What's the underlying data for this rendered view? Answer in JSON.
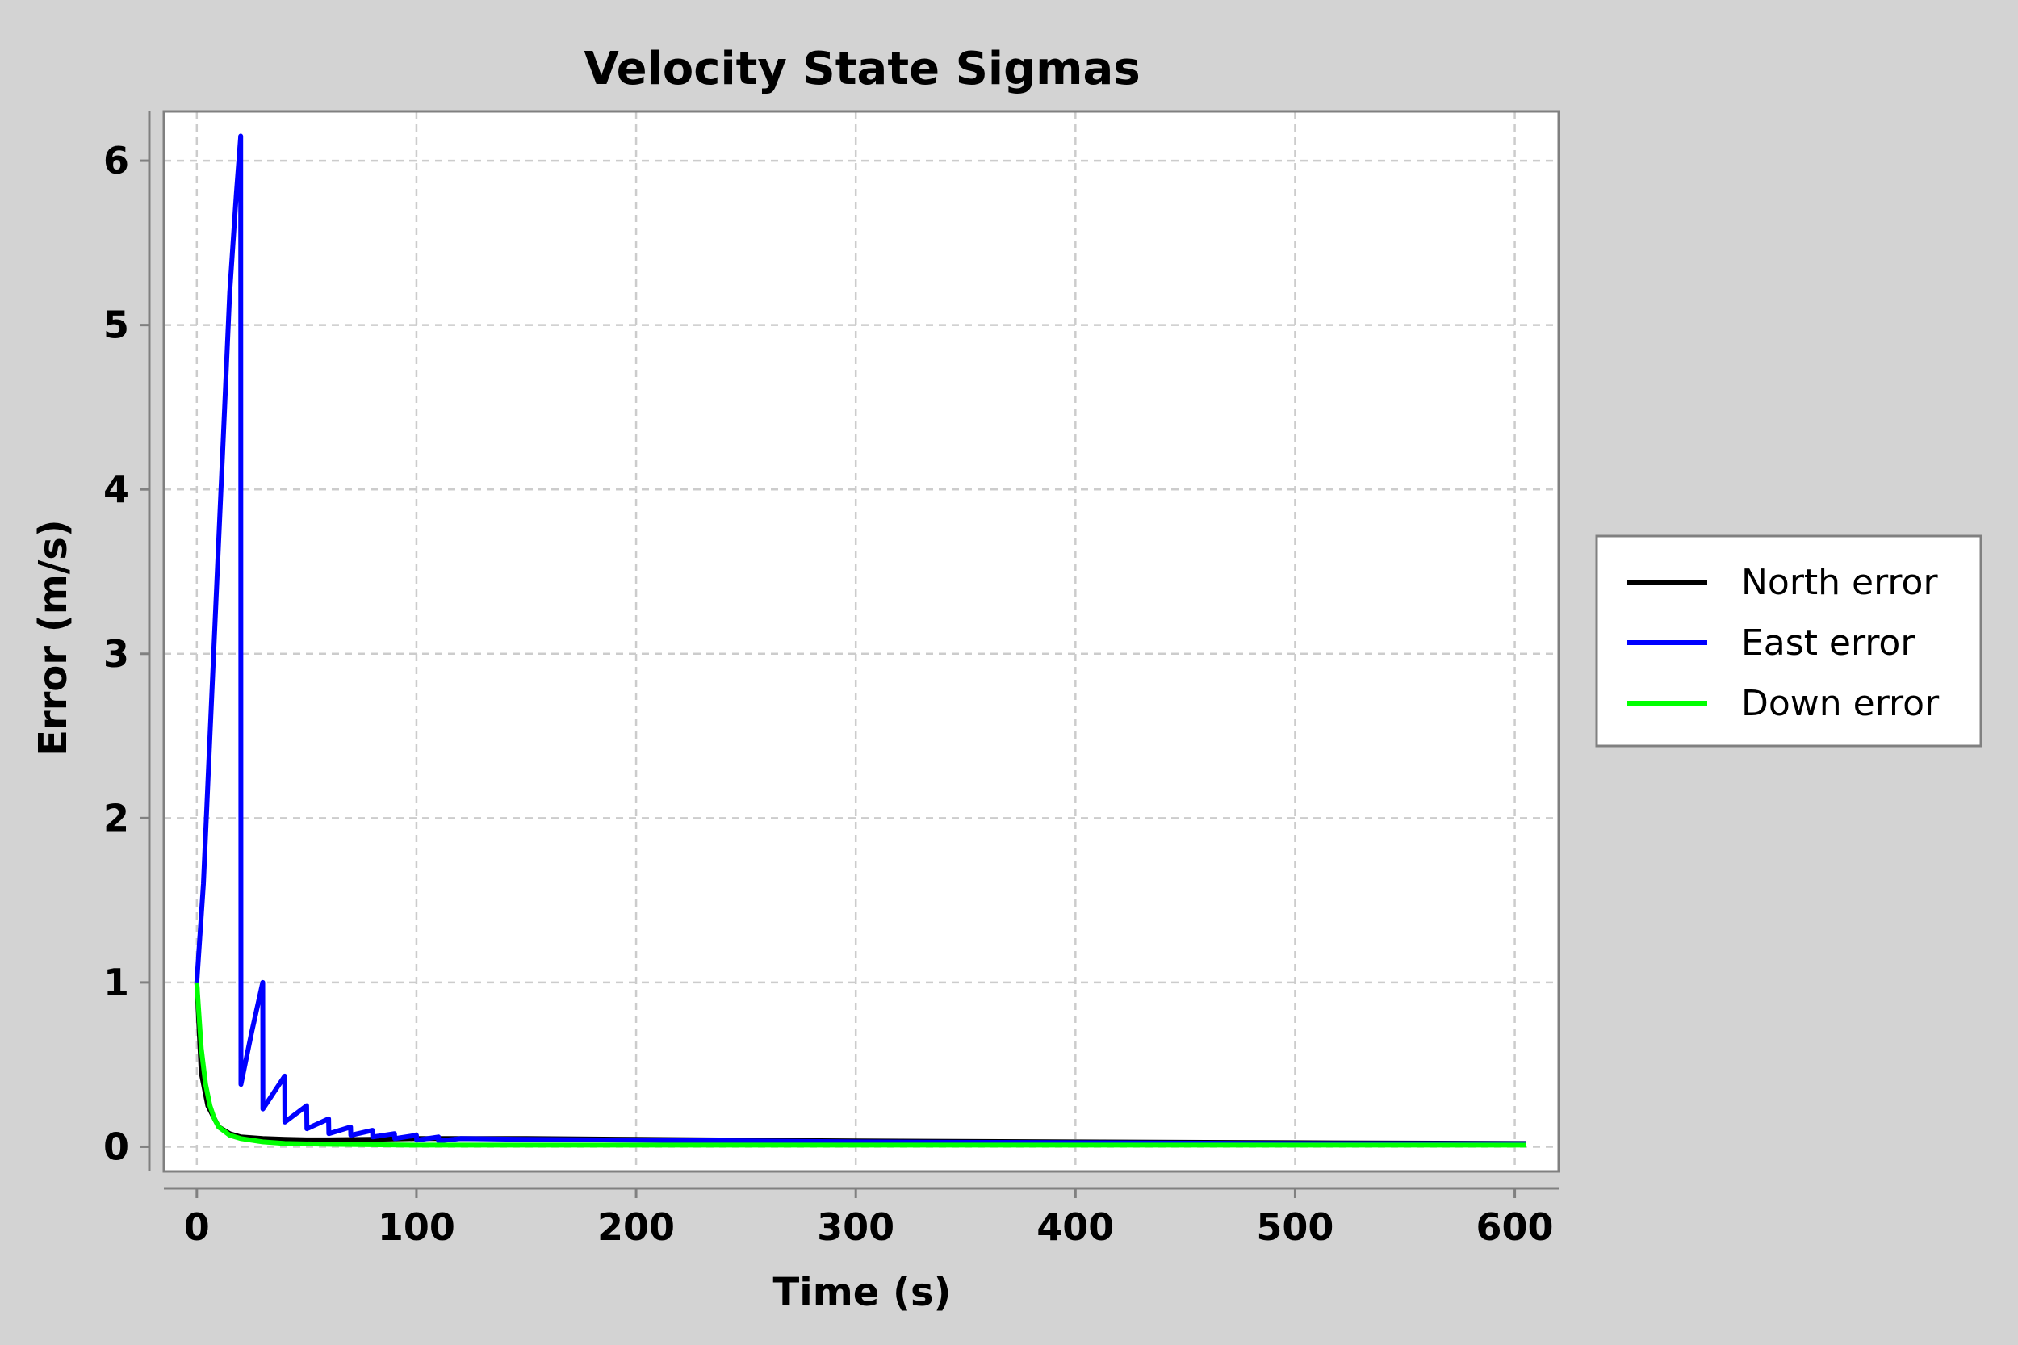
{
  "chart_data": {
    "type": "line",
    "title": "Velocity State Sigmas",
    "xlabel": "Time (s)",
    "ylabel": "Error (m/s)",
    "xlim": [
      -15,
      620
    ],
    "ylim": [
      -0.15,
      6.3
    ],
    "xticks": [
      0,
      100,
      200,
      300,
      400,
      500,
      600
    ],
    "yticks": [
      0,
      1,
      2,
      3,
      4,
      5,
      6
    ],
    "grid": true,
    "legend_position": "right",
    "series": [
      {
        "name": "North error",
        "color": "#000000",
        "x": [
          0,
          2,
          5,
          10,
          15,
          20,
          30,
          40,
          50,
          60,
          80,
          100,
          120,
          150,
          200,
          250,
          300,
          400,
          500,
          605
        ],
        "y": [
          1.0,
          0.45,
          0.25,
          0.12,
          0.08,
          0.06,
          0.05,
          0.045,
          0.042,
          0.042,
          0.045,
          0.05,
          0.05,
          0.05,
          0.045,
          0.04,
          0.035,
          0.03,
          0.025,
          0.02
        ]
      },
      {
        "name": "East error",
        "color": "#0000ff",
        "x": [
          0,
          3,
          6,
          9,
          12,
          15,
          18,
          20,
          20.1,
          25,
          30,
          30.1,
          40,
          40.1,
          50,
          50.1,
          60,
          60.1,
          70,
          70.1,
          80,
          80.1,
          90,
          90.1,
          100,
          100.1,
          110,
          110.1,
          120,
          150,
          200,
          250,
          300,
          400,
          500,
          605
        ],
        "y": [
          1.0,
          1.6,
          2.5,
          3.4,
          4.3,
          5.2,
          5.8,
          6.15,
          0.38,
          0.7,
          1.0,
          0.23,
          0.43,
          0.15,
          0.25,
          0.11,
          0.17,
          0.08,
          0.12,
          0.07,
          0.1,
          0.06,
          0.08,
          0.05,
          0.07,
          0.04,
          0.06,
          0.035,
          0.05,
          0.045,
          0.04,
          0.035,
          0.03,
          0.025,
          0.02,
          0.018
        ]
      },
      {
        "name": "Down error",
        "color": "#00ff00",
        "x": [
          0,
          2,
          4,
          6,
          8,
          10,
          15,
          20,
          30,
          40,
          60,
          100,
          150,
          200,
          300,
          400,
          500,
          605
        ],
        "y": [
          1.0,
          0.6,
          0.38,
          0.25,
          0.17,
          0.12,
          0.07,
          0.05,
          0.03,
          0.02,
          0.015,
          0.01,
          0.01,
          0.01,
          0.01,
          0.01,
          0.01,
          0.01
        ]
      }
    ]
  }
}
